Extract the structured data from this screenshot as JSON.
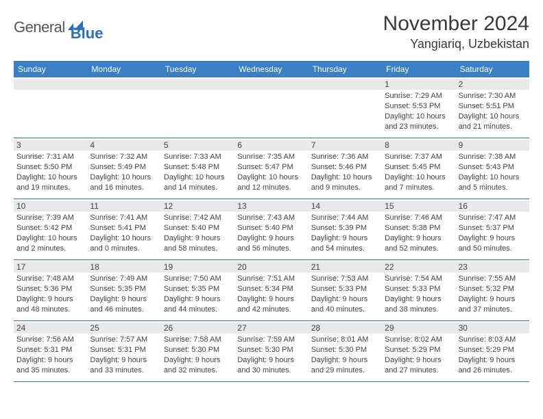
{
  "logo": {
    "text1": "General",
    "text2": "Blue"
  },
  "title": "November 2024",
  "location": "Yangiariq, Uzbekistan",
  "colors": {
    "header_bg": "#3b7fc4",
    "border": "#2a71b8",
    "daynum_bg": "#e8e9ea",
    "text": "#444444",
    "logo_gray": "#555559",
    "logo_blue": "#2a71b8"
  },
  "day_names": [
    "Sunday",
    "Monday",
    "Tuesday",
    "Wednesday",
    "Thursday",
    "Friday",
    "Saturday"
  ],
  "weeks": [
    [
      {
        "day": "",
        "sunrise": "",
        "sunset": "",
        "daylight": ""
      },
      {
        "day": "",
        "sunrise": "",
        "sunset": "",
        "daylight": ""
      },
      {
        "day": "",
        "sunrise": "",
        "sunset": "",
        "daylight": ""
      },
      {
        "day": "",
        "sunrise": "",
        "sunset": "",
        "daylight": ""
      },
      {
        "day": "",
        "sunrise": "",
        "sunset": "",
        "daylight": ""
      },
      {
        "day": "1",
        "sunrise": "Sunrise: 7:29 AM",
        "sunset": "Sunset: 5:53 PM",
        "daylight": "Daylight: 10 hours and 23 minutes."
      },
      {
        "day": "2",
        "sunrise": "Sunrise: 7:30 AM",
        "sunset": "Sunset: 5:51 PM",
        "daylight": "Daylight: 10 hours and 21 minutes."
      }
    ],
    [
      {
        "day": "3",
        "sunrise": "Sunrise: 7:31 AM",
        "sunset": "Sunset: 5:50 PM",
        "daylight": "Daylight: 10 hours and 19 minutes."
      },
      {
        "day": "4",
        "sunrise": "Sunrise: 7:32 AM",
        "sunset": "Sunset: 5:49 PM",
        "daylight": "Daylight: 10 hours and 16 minutes."
      },
      {
        "day": "5",
        "sunrise": "Sunrise: 7:33 AM",
        "sunset": "Sunset: 5:48 PM",
        "daylight": "Daylight: 10 hours and 14 minutes."
      },
      {
        "day": "6",
        "sunrise": "Sunrise: 7:35 AM",
        "sunset": "Sunset: 5:47 PM",
        "daylight": "Daylight: 10 hours and 12 minutes."
      },
      {
        "day": "7",
        "sunrise": "Sunrise: 7:36 AM",
        "sunset": "Sunset: 5:46 PM",
        "daylight": "Daylight: 10 hours and 9 minutes."
      },
      {
        "day": "8",
        "sunrise": "Sunrise: 7:37 AM",
        "sunset": "Sunset: 5:45 PM",
        "daylight": "Daylight: 10 hours and 7 minutes."
      },
      {
        "day": "9",
        "sunrise": "Sunrise: 7:38 AM",
        "sunset": "Sunset: 5:43 PM",
        "daylight": "Daylight: 10 hours and 5 minutes."
      }
    ],
    [
      {
        "day": "10",
        "sunrise": "Sunrise: 7:39 AM",
        "sunset": "Sunset: 5:42 PM",
        "daylight": "Daylight: 10 hours and 2 minutes."
      },
      {
        "day": "11",
        "sunrise": "Sunrise: 7:41 AM",
        "sunset": "Sunset: 5:41 PM",
        "daylight": "Daylight: 10 hours and 0 minutes."
      },
      {
        "day": "12",
        "sunrise": "Sunrise: 7:42 AM",
        "sunset": "Sunset: 5:40 PM",
        "daylight": "Daylight: 9 hours and 58 minutes."
      },
      {
        "day": "13",
        "sunrise": "Sunrise: 7:43 AM",
        "sunset": "Sunset: 5:40 PM",
        "daylight": "Daylight: 9 hours and 56 minutes."
      },
      {
        "day": "14",
        "sunrise": "Sunrise: 7:44 AM",
        "sunset": "Sunset: 5:39 PM",
        "daylight": "Daylight: 9 hours and 54 minutes."
      },
      {
        "day": "15",
        "sunrise": "Sunrise: 7:46 AM",
        "sunset": "Sunset: 5:38 PM",
        "daylight": "Daylight: 9 hours and 52 minutes."
      },
      {
        "day": "16",
        "sunrise": "Sunrise: 7:47 AM",
        "sunset": "Sunset: 5:37 PM",
        "daylight": "Daylight: 9 hours and 50 minutes."
      }
    ],
    [
      {
        "day": "17",
        "sunrise": "Sunrise: 7:48 AM",
        "sunset": "Sunset: 5:36 PM",
        "daylight": "Daylight: 9 hours and 48 minutes."
      },
      {
        "day": "18",
        "sunrise": "Sunrise: 7:49 AM",
        "sunset": "Sunset: 5:35 PM",
        "daylight": "Daylight: 9 hours and 46 minutes."
      },
      {
        "day": "19",
        "sunrise": "Sunrise: 7:50 AM",
        "sunset": "Sunset: 5:35 PM",
        "daylight": "Daylight: 9 hours and 44 minutes."
      },
      {
        "day": "20",
        "sunrise": "Sunrise: 7:51 AM",
        "sunset": "Sunset: 5:34 PM",
        "daylight": "Daylight: 9 hours and 42 minutes."
      },
      {
        "day": "21",
        "sunrise": "Sunrise: 7:53 AM",
        "sunset": "Sunset: 5:33 PM",
        "daylight": "Daylight: 9 hours and 40 minutes."
      },
      {
        "day": "22",
        "sunrise": "Sunrise: 7:54 AM",
        "sunset": "Sunset: 5:33 PM",
        "daylight": "Daylight: 9 hours and 38 minutes."
      },
      {
        "day": "23",
        "sunrise": "Sunrise: 7:55 AM",
        "sunset": "Sunset: 5:32 PM",
        "daylight": "Daylight: 9 hours and 37 minutes."
      }
    ],
    [
      {
        "day": "24",
        "sunrise": "Sunrise: 7:56 AM",
        "sunset": "Sunset: 5:31 PM",
        "daylight": "Daylight: 9 hours and 35 minutes."
      },
      {
        "day": "25",
        "sunrise": "Sunrise: 7:57 AM",
        "sunset": "Sunset: 5:31 PM",
        "daylight": "Daylight: 9 hours and 33 minutes."
      },
      {
        "day": "26",
        "sunrise": "Sunrise: 7:58 AM",
        "sunset": "Sunset: 5:30 PM",
        "daylight": "Daylight: 9 hours and 32 minutes."
      },
      {
        "day": "27",
        "sunrise": "Sunrise: 7:59 AM",
        "sunset": "Sunset: 5:30 PM",
        "daylight": "Daylight: 9 hours and 30 minutes."
      },
      {
        "day": "28",
        "sunrise": "Sunrise: 8:01 AM",
        "sunset": "Sunset: 5:30 PM",
        "daylight": "Daylight: 9 hours and 29 minutes."
      },
      {
        "day": "29",
        "sunrise": "Sunrise: 8:02 AM",
        "sunset": "Sunset: 5:29 PM",
        "daylight": "Daylight: 9 hours and 27 minutes."
      },
      {
        "day": "30",
        "sunrise": "Sunrise: 8:03 AM",
        "sunset": "Sunset: 5:29 PM",
        "daylight": "Daylight: 9 hours and 26 minutes."
      }
    ]
  ]
}
